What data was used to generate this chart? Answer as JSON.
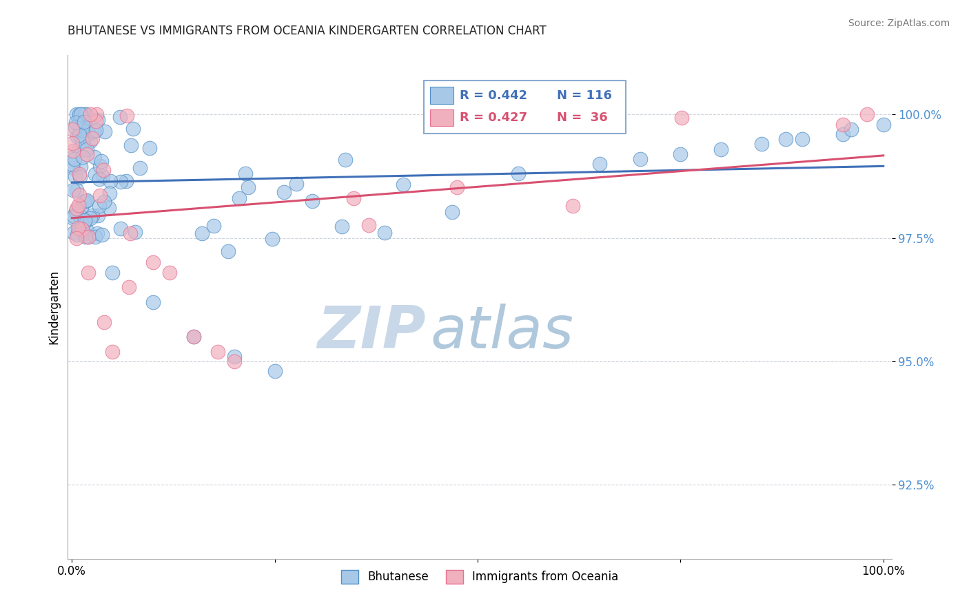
{
  "title": "BHUTANESE VS IMMIGRANTS FROM OCEANIA KINDERGARTEN CORRELATION CHART",
  "source_text": "Source: ZipAtlas.com",
  "ylabel": "Kindergarten",
  "yaxis_values": [
    92.5,
    95.0,
    97.5,
    100.0
  ],
  "legend_label1": "Bhutanese",
  "legend_label2": "Immigrants from Oceania",
  "legend_r1": "R = 0.442",
  "legend_n1": "N = 116",
  "legend_r2": "R = 0.427",
  "legend_n2": "N =  36",
  "color_blue": "#a8c8e8",
  "color_pink": "#f0b0be",
  "edge_blue": "#5090c8",
  "edge_pink": "#e87090",
  "line_blue": "#4070b8",
  "line_pink": "#d85070",
  "yaxis_color": "#5090d0",
  "watermark_zip_color": "#c8d8e8",
  "watermark_atlas_color": "#b0c8dc"
}
